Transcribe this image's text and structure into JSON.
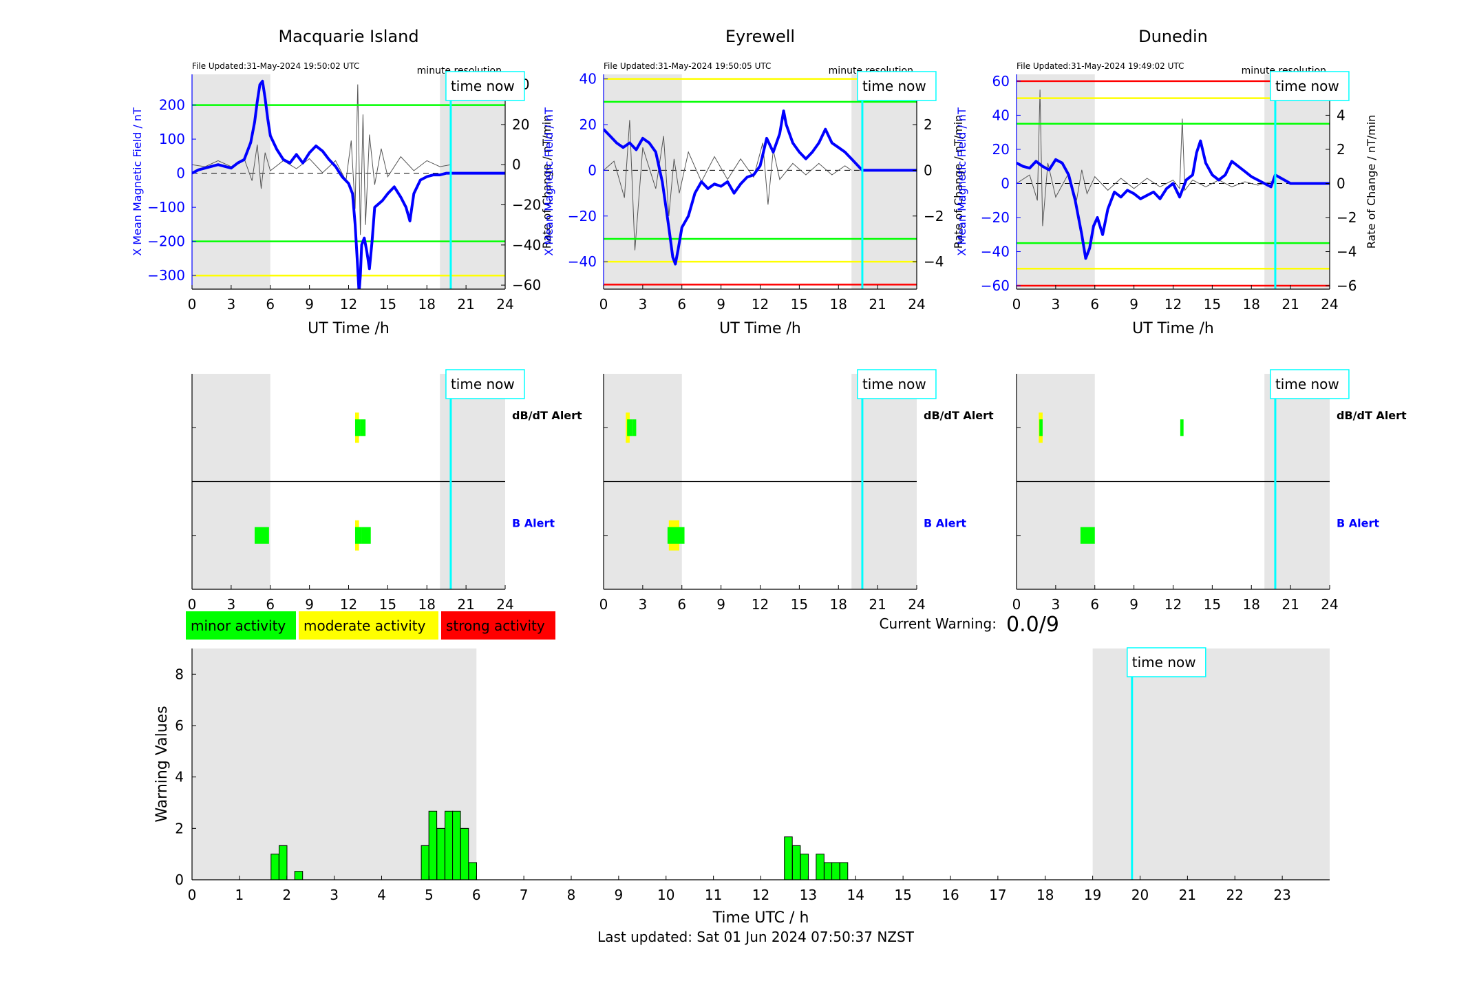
{
  "page": {
    "footer": "Last updated: Sat 01 Jun 2024 07:50:37 NZST",
    "current_warning_label": "Current Warning:",
    "current_warning_value": "0.0/9",
    "time_now_label": "time now",
    "resolution_label": "minute resolution",
    "ut_xlabel": "UT Time /h",
    "left_ylabel": "X Mean Magnetic Field / nT",
    "right_ylabel": "Rate of Change / nT/min",
    "dbdt_alert_label": "dB/dT Alert",
    "b_alert_label": "B Alert"
  },
  "colors": {
    "minor": "#00ff00",
    "moderate": "#ffff00",
    "strong": "#ff0000",
    "time_now": "#00ffff",
    "shade": "#e6e6e6",
    "field_line": "#0000ff",
    "rate_line": "#555555",
    "alert_b_label": "#0000ff"
  },
  "legend": [
    {
      "label": "minor activity",
      "color": "#00ff00"
    },
    {
      "label": "moderate activity",
      "color": "#ffff00"
    },
    {
      "label": "strong activity",
      "color": "#ff0000"
    }
  ],
  "chart_data": [
    {
      "type": "line",
      "title": "Macquarie Island",
      "file_updated": "File Updated:31-May-2024 19:50:02 UTC",
      "xlabel": "UT Time /h",
      "ylabel": "X Mean Magnetic Field / nT",
      "y2label": "Rate of Change / nT/min",
      "xlim": [
        0,
        24
      ],
      "ylim": [
        -340,
        290
      ],
      "y2lim": [
        -62,
        45
      ],
      "xticks": [
        0,
        3,
        6,
        9,
        12,
        15,
        18,
        21,
        24
      ],
      "yticks": [
        -300,
        -200,
        -100,
        0,
        100,
        200
      ],
      "y2ticks": [
        -60,
        -40,
        -20,
        0,
        20,
        40
      ],
      "shaded_ranges": [
        [
          0,
          6
        ],
        [
          19,
          24
        ]
      ],
      "time_now": 19.83,
      "data_end": 19.83,
      "thresholds": [
        {
          "value": 200,
          "color": "green"
        },
        {
          "value": -200,
          "color": "green"
        },
        {
          "value": -300,
          "color": "yellow"
        }
      ],
      "series": [
        {
          "name": "X Mean Magnetic Field",
          "x": [
            0,
            0.5,
            1,
            1.5,
            2,
            2.5,
            3,
            3.5,
            4,
            4.5,
            4.8,
            5.0,
            5.2,
            5.4,
            5.6,
            5.8,
            6.0,
            6.5,
            7,
            7.5,
            8,
            8.5,
            9,
            9.5,
            10,
            10.5,
            11,
            11.5,
            12,
            12.3,
            12.5,
            12.7,
            12.8,
            12.9,
            13.0,
            13.2,
            13.4,
            13.6,
            13.8,
            14.0,
            14.3,
            14.6,
            15.0,
            15.5,
            16.0,
            16.4,
            16.7,
            17.0,
            17.5,
            18.0,
            18.5,
            19.0,
            19.5,
            19.83,
            20.5,
            21,
            22,
            23,
            24
          ],
          "y": [
            0,
            10,
            15,
            20,
            25,
            20,
            15,
            30,
            40,
            90,
            150,
            210,
            260,
            270,
            220,
            160,
            110,
            70,
            40,
            30,
            55,
            30,
            60,
            80,
            65,
            40,
            20,
            -10,
            -30,
            -60,
            -150,
            -280,
            -350,
            -300,
            -210,
            -190,
            -230,
            -280,
            -200,
            -100,
            -90,
            -80,
            -60,
            -40,
            -70,
            -100,
            -140,
            -60,
            -20,
            -10,
            -5,
            -5,
            0,
            0,
            0,
            0,
            0,
            0,
            0
          ]
        },
        {
          "name": "Rate of Change",
          "x": [
            0,
            1,
            2,
            3,
            4,
            4.6,
            5.0,
            5.3,
            5.6,
            6,
            7,
            8,
            9,
            10,
            11,
            11.8,
            12.2,
            12.5,
            12.7,
            12.9,
            13.1,
            13.3,
            13.6,
            14,
            14.5,
            15,
            16,
            17,
            18,
            19,
            19.83
          ],
          "y": [
            0,
            -1,
            2,
            -1,
            3,
            -8,
            10,
            -12,
            6,
            -3,
            2,
            -2,
            3,
            -4,
            2,
            -8,
            12,
            -22,
            40,
            -35,
            25,
            -30,
            15,
            -10,
            8,
            -6,
            4,
            -3,
            2,
            -1,
            0
          ]
        }
      ]
    },
    {
      "type": "line",
      "title": "Eyrewell",
      "file_updated": "File Updated:31-May-2024 19:50:05 UTC",
      "xlabel": "UT Time /h",
      "ylabel": "X Mean Magnetic Field / nT",
      "y2label": "Rate of Change / nT/min",
      "xlim": [
        0,
        24
      ],
      "ylim": [
        -52,
        42
      ],
      "y2lim": [
        -5.2,
        4.2
      ],
      "xticks": [
        0,
        3,
        6,
        9,
        12,
        15,
        18,
        21,
        24
      ],
      "yticks": [
        -40,
        -20,
        0,
        20,
        40
      ],
      "y2ticks": [
        -4,
        -2,
        0,
        2,
        4
      ],
      "shaded_ranges": [
        [
          0,
          6
        ],
        [
          19,
          24
        ]
      ],
      "time_now": 19.83,
      "data_end": 19.0,
      "thresholds": [
        {
          "value": 40,
          "color": "yellow"
        },
        {
          "value": 30,
          "color": "green"
        },
        {
          "value": -30,
          "color": "green"
        },
        {
          "value": -40,
          "color": "yellow"
        },
        {
          "value": -50,
          "color": "red"
        }
      ],
      "series": [
        {
          "name": "X Mean Magnetic Field",
          "x": [
            0,
            0.5,
            1,
            1.5,
            2,
            2.5,
            3,
            3.5,
            4,
            4.5,
            5.0,
            5.3,
            5.5,
            5.7,
            6.0,
            6.5,
            7,
            7.5,
            8,
            8.5,
            9,
            9.5,
            10,
            10.5,
            11,
            11.5,
            12,
            12.5,
            13,
            13.5,
            13.8,
            14.0,
            14.5,
            15,
            15.5,
            16,
            16.5,
            17,
            17.5,
            18,
            18.5,
            19.0,
            19.83,
            21,
            22,
            23,
            24
          ],
          "y": [
            18,
            15,
            12,
            10,
            12,
            9,
            14,
            12,
            8,
            -5,
            -25,
            -38,
            -41,
            -35,
            -25,
            -20,
            -10,
            -5,
            -8,
            -6,
            -7,
            -5,
            -10,
            -6,
            -3,
            -2,
            2,
            14,
            8,
            16,
            26,
            20,
            12,
            8,
            5,
            8,
            12,
            18,
            12,
            10,
            8,
            5,
            0,
            0,
            0,
            0,
            0
          ]
        },
        {
          "name": "Rate of Change",
          "x": [
            0,
            0.8,
            1.6,
            2.0,
            2.4,
            3,
            4,
            4.6,
            5.0,
            5.4,
            5.8,
            6.5,
            7.5,
            8.5,
            9.5,
            10.5,
            11.5,
            12.2,
            12.6,
            13,
            13.5,
            14.5,
            15.5,
            16.5,
            17.5,
            18.5,
            19.0
          ],
          "y": [
            0,
            0.4,
            -1.2,
            2.2,
            -3.5,
            1.0,
            -0.8,
            1.5,
            -2.0,
            0.5,
            -1.0,
            0.8,
            -0.5,
            0.6,
            -0.4,
            0.5,
            -0.3,
            1.2,
            -1.5,
            0.9,
            -0.4,
            0.3,
            -0.2,
            0.3,
            -0.2,
            0.2,
            0
          ]
        }
      ]
    },
    {
      "type": "line",
      "title": "Dunedin",
      "file_updated": "File Updated:31-May-2024 19:49:02 UTC",
      "xlabel": "UT Time /h",
      "ylabel": "X Mean Magnetic Field / nT",
      "y2label": "Rate of Change / nT/min",
      "xlim": [
        0,
        24
      ],
      "ylim": [
        -62,
        64
      ],
      "y2lim": [
        -6.2,
        6.4
      ],
      "xticks": [
        0,
        3,
        6,
        9,
        12,
        15,
        18,
        21,
        24
      ],
      "yticks": [
        -60,
        -40,
        -20,
        0,
        20,
        40,
        60
      ],
      "y2ticks": [
        -6,
        -4,
        -2,
        0,
        2,
        4,
        6
      ],
      "shaded_ranges": [
        [
          0,
          6
        ],
        [
          19,
          24
        ]
      ],
      "time_now": 19.83,
      "data_end": 19.83,
      "thresholds": [
        {
          "value": 60,
          "color": "red"
        },
        {
          "value": 50,
          "color": "yellow"
        },
        {
          "value": 35,
          "color": "green"
        },
        {
          "value": -35,
          "color": "green"
        },
        {
          "value": -50,
          "color": "yellow"
        },
        {
          "value": -60,
          "color": "red"
        }
      ],
      "series": [
        {
          "name": "X Mean Magnetic Field",
          "x": [
            0,
            0.5,
            1,
            1.5,
            2,
            2.5,
            3,
            3.5,
            4,
            4.5,
            5.0,
            5.3,
            5.6,
            5.9,
            6.2,
            6.6,
            7,
            7.5,
            8,
            8.5,
            9,
            9.5,
            10,
            10.5,
            11,
            11.5,
            12,
            12.5,
            13,
            13.5,
            13.8,
            14.1,
            14.5,
            15,
            15.5,
            16,
            16.5,
            17,
            17.5,
            18,
            18.5,
            19,
            19.5,
            19.83,
            21,
            22,
            23,
            24
          ],
          "y": [
            12,
            10,
            9,
            13,
            10,
            8,
            14,
            12,
            5,
            -10,
            -30,
            -44,
            -38,
            -25,
            -20,
            -30,
            -15,
            -5,
            -8,
            -4,
            -6,
            -9,
            -7,
            -5,
            -9,
            -3,
            0,
            -8,
            2,
            5,
            18,
            25,
            12,
            5,
            2,
            5,
            13,
            10,
            7,
            4,
            2,
            0,
            -2,
            5,
            0,
            0,
            0,
            0
          ]
        },
        {
          "name": "Rate of Change",
          "x": [
            0,
            1,
            1.6,
            1.8,
            2.0,
            2.4,
            3,
            4,
            4.6,
            5.0,
            5.4,
            6,
            7,
            8,
            9,
            10,
            11,
            12,
            12.5,
            12.7,
            12.9,
            13.5,
            14.5,
            15.5,
            16.5,
            17.5,
            18.5,
            19.5,
            19.83
          ],
          "y": [
            0,
            0.5,
            -1.0,
            5.5,
            -2.5,
            1.2,
            -0.8,
            0.6,
            -1.0,
            0.8,
            -0.6,
            0.4,
            -0.4,
            0.3,
            -0.3,
            0.3,
            -0.2,
            0.2,
            -0.3,
            3.8,
            -0.4,
            0.2,
            -0.2,
            0.2,
            -0.2,
            0.1,
            -0.1,
            0.1,
            0
          ]
        }
      ]
    },
    {
      "type": "bar",
      "title": "",
      "xlabel": "Time UTC / h",
      "ylabel": "Warning Values",
      "xlim": [
        0,
        24
      ],
      "ylim": [
        0,
        9
      ],
      "xticks": [
        0,
        1,
        2,
        3,
        4,
        5,
        6,
        7,
        8,
        9,
        10,
        11,
        12,
        13,
        14,
        15,
        16,
        17,
        18,
        19,
        20,
        21,
        22,
        23
      ],
      "yticks": [
        0,
        2,
        4,
        6,
        8
      ],
      "shaded_ranges": [
        [
          0,
          6
        ],
        [
          19,
          24
        ]
      ],
      "time_now": 19.83,
      "bar_width_h": 0.1667,
      "x": [
        1.75,
        1.92,
        2.25,
        4.92,
        5.08,
        5.25,
        5.42,
        5.58,
        5.75,
        5.92,
        12.58,
        12.75,
        12.92,
        13.25,
        13.42,
        13.58,
        13.75
      ],
      "values": [
        1.0,
        1.33,
        0.33,
        1.33,
        2.67,
        2.0,
        2.67,
        2.67,
        2.0,
        0.67,
        1.67,
        1.33,
        1.0,
        1.0,
        0.67,
        0.67,
        0.67
      ]
    }
  ],
  "alerts": [
    {
      "station": "Macquarie Island",
      "dbdt": [
        {
          "start": 12.5,
          "end": 12.8,
          "level": "moderate",
          "span": 1.0
        },
        {
          "start": 12.5,
          "end": 12.9,
          "level": "minor",
          "span": 0.55
        },
        {
          "start": 12.9,
          "end": 13.3,
          "level": "minor",
          "span": 0.55
        }
      ],
      "b": [
        {
          "start": 4.8,
          "end": 5.9,
          "level": "minor",
          "span": 0.55
        },
        {
          "start": 12.5,
          "end": 12.8,
          "level": "moderate",
          "span": 1.0
        },
        {
          "start": 12.5,
          "end": 13.0,
          "level": "minor",
          "span": 0.55
        },
        {
          "start": 13.0,
          "end": 13.7,
          "level": "minor",
          "span": 0.55
        }
      ]
    },
    {
      "station": "Eyrewell",
      "dbdt": [
        {
          "start": 1.7,
          "end": 2.0,
          "level": "moderate",
          "span": 1.0
        },
        {
          "start": 1.8,
          "end": 2.2,
          "level": "minor",
          "span": 0.55
        },
        {
          "start": 2.2,
          "end": 2.5,
          "level": "minor",
          "span": 0.55
        }
      ],
      "b": [
        {
          "start": 5.0,
          "end": 5.8,
          "level": "moderate",
          "span": 1.0
        },
        {
          "start": 4.9,
          "end": 6.2,
          "level": "minor",
          "span": 0.55
        }
      ]
    },
    {
      "station": "Dunedin",
      "dbdt": [
        {
          "start": 1.7,
          "end": 2.0,
          "level": "moderate",
          "span": 1.0
        },
        {
          "start": 1.75,
          "end": 2.0,
          "level": "minor",
          "span": 0.55
        },
        {
          "start": 12.55,
          "end": 12.8,
          "level": "minor",
          "span": 0.55
        }
      ],
      "b": [
        {
          "start": 4.9,
          "end": 6.0,
          "level": "minor",
          "span": 0.55
        }
      ]
    }
  ]
}
